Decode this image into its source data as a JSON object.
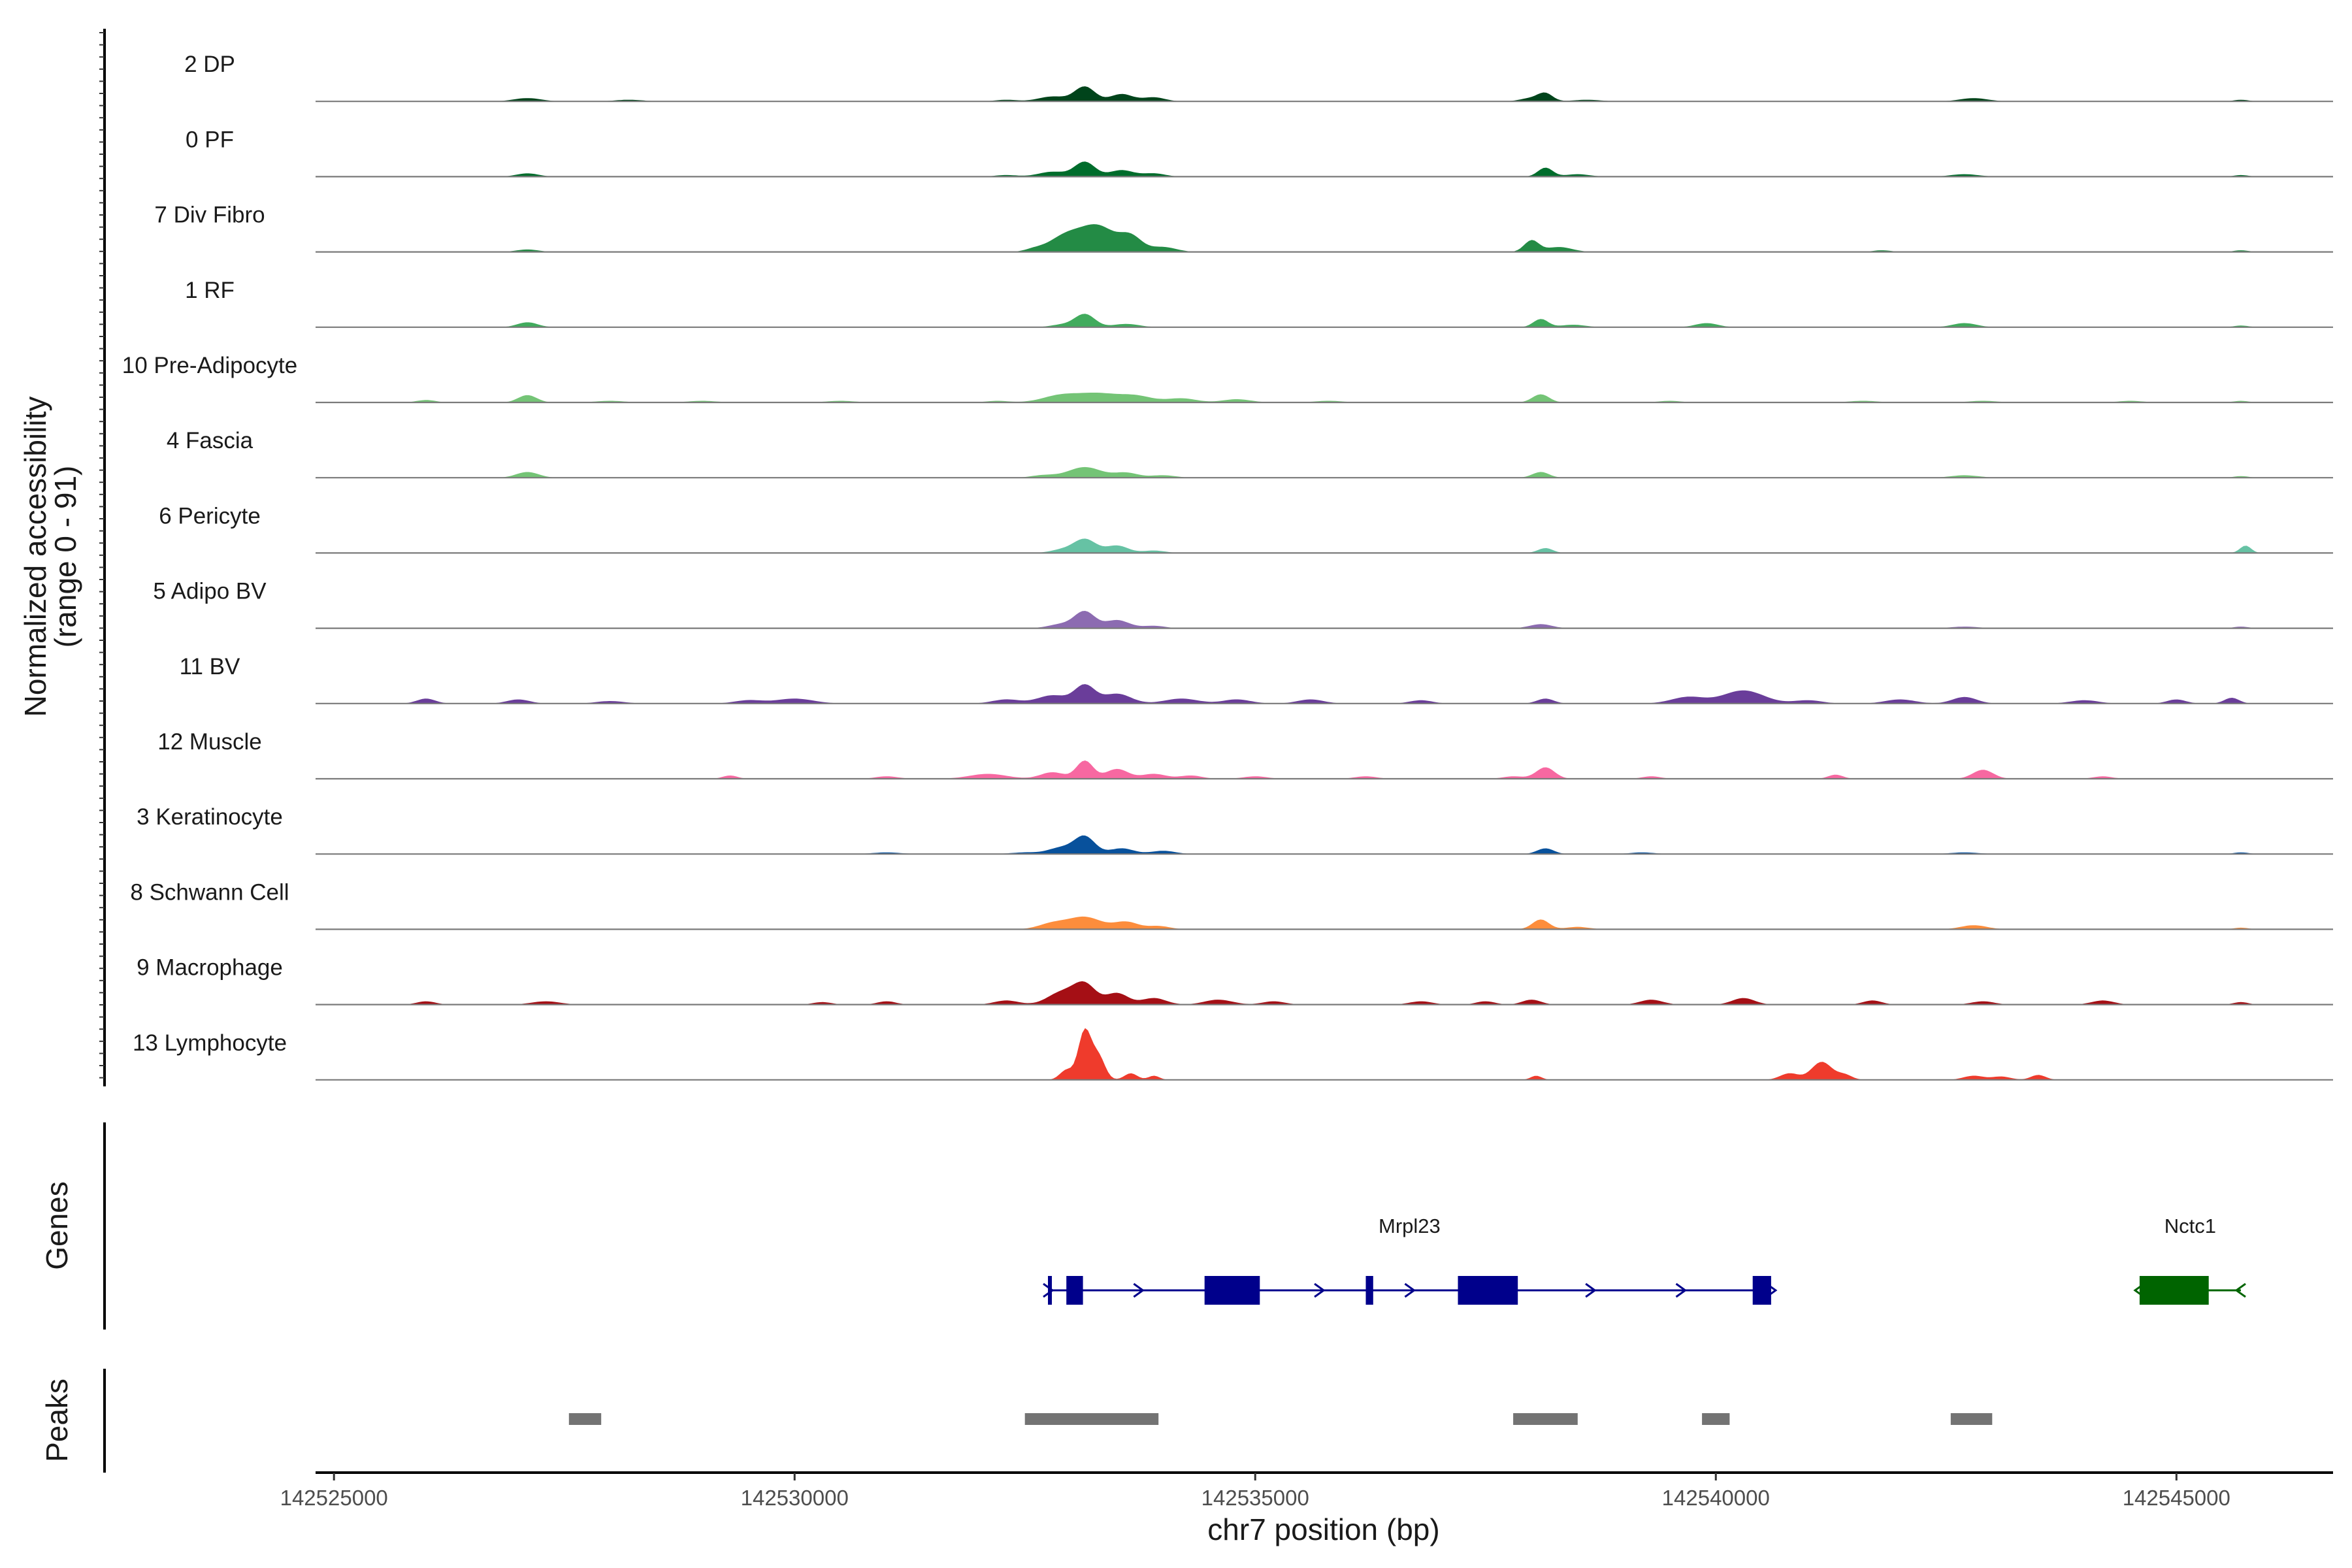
{
  "chart_data": {
    "type": "area",
    "title": "",
    "ylabel": "Normalized accessibility",
    "ylabel_range": "(range 0 - 91)",
    "ylim": [
      0,
      91
    ],
    "xlabel": "chr7 position (bp)",
    "xlim": [
      142524800,
      142546700
    ],
    "x_ticks": [
      142525000,
      142530000,
      142535000,
      142540000,
      142545000
    ],
    "x_tick_labels": [
      "142525000",
      "142530000",
      "142535000",
      "142540000",
      "142545000"
    ],
    "tracks": [
      {
        "name": "2 DP",
        "color": "#00441b",
        "peaks": [
          [
            142527100,
            4,
            150
          ],
          [
            142528200,
            2,
            150
          ],
          [
            142532300,
            2,
            120
          ],
          [
            142532800,
            6,
            150
          ],
          [
            142533150,
            18,
            110
          ],
          [
            142533550,
            9,
            120
          ],
          [
            142533900,
            5,
            120
          ],
          [
            142538000,
            4,
            120
          ],
          [
            142538150,
            9,
            80
          ],
          [
            142538600,
            2,
            150
          ],
          [
            142542800,
            4,
            150
          ],
          [
            142545700,
            2,
            80
          ]
        ]
      },
      {
        "name": "0 PF",
        "color": "#006d2c",
        "peaks": [
          [
            142527100,
            4,
            120
          ],
          [
            142532300,
            2,
            120
          ],
          [
            142532800,
            6,
            150
          ],
          [
            142533150,
            18,
            110
          ],
          [
            142533550,
            8,
            130
          ],
          [
            142533900,
            4,
            120
          ],
          [
            142538150,
            11,
            80
          ],
          [
            142538500,
            3,
            130
          ],
          [
            142542700,
            3,
            150
          ],
          [
            142545700,
            2,
            80
          ]
        ]
      },
      {
        "name": "7 Div Fibro",
        "color": "#238b45",
        "peaks": [
          [
            142527100,
            3,
            120
          ],
          [
            142532600,
            3,
            100
          ],
          [
            142532950,
            20,
            180
          ],
          [
            142533300,
            30,
            180
          ],
          [
            142533650,
            18,
            120
          ],
          [
            142534000,
            6,
            140
          ],
          [
            142538000,
            14,
            80
          ],
          [
            142538300,
            6,
            140
          ],
          [
            142541800,
            2,
            100
          ],
          [
            142545700,
            2,
            80
          ]
        ]
      },
      {
        "name": "1 RF",
        "color": "#41ab5d",
        "peaks": [
          [
            142527100,
            6,
            110
          ],
          [
            142532900,
            3,
            120
          ],
          [
            142533150,
            16,
            110
          ],
          [
            142533600,
            4,
            140
          ],
          [
            142538100,
            10,
            80
          ],
          [
            142538450,
            3,
            130
          ],
          [
            142539900,
            5,
            120
          ],
          [
            142542700,
            5,
            130
          ],
          [
            142545700,
            2,
            80
          ]
        ]
      },
      {
        "name": "10 Pre-Adipocyte",
        "color": "#74c476",
        "peaks": [
          [
            142526000,
            3,
            100
          ],
          [
            142527100,
            9,
            100
          ],
          [
            142528000,
            2,
            150
          ],
          [
            142529000,
            2,
            150
          ],
          [
            142530500,
            2,
            150
          ],
          [
            142532200,
            2,
            120
          ],
          [
            142532900,
            9,
            200
          ],
          [
            142533300,
            10,
            200
          ],
          [
            142533700,
            8,
            180
          ],
          [
            142534200,
            5,
            160
          ],
          [
            142534800,
            4,
            150
          ],
          [
            142535800,
            2,
            150
          ],
          [
            142538100,
            10,
            90
          ],
          [
            142539500,
            2,
            120
          ],
          [
            142541600,
            2,
            150
          ],
          [
            142542900,
            2,
            150
          ],
          [
            142544500,
            2,
            130
          ],
          [
            142545700,
            2,
            80
          ]
        ]
      },
      {
        "name": "4 Fascia",
        "color": "#74c476",
        "peaks": [
          [
            142527100,
            7,
            120
          ],
          [
            142532700,
            3,
            130
          ],
          [
            142533150,
            13,
            180
          ],
          [
            142533600,
            6,
            130
          ],
          [
            142534000,
            3,
            130
          ],
          [
            142538100,
            7,
            90
          ],
          [
            142542700,
            3,
            150
          ],
          [
            142545700,
            2,
            80
          ]
        ]
      },
      {
        "name": "6 Pericyte",
        "color": "#66c2a4",
        "peaks": [
          [
            142532900,
            4,
            120
          ],
          [
            142533150,
            17,
            120
          ],
          [
            142533500,
            9,
            120
          ],
          [
            142533900,
            3,
            120
          ],
          [
            142538150,
            6,
            80
          ],
          [
            142545750,
            9,
            60
          ]
        ]
      },
      {
        "name": "5 Adipo BV",
        "color": "#8c6bb1",
        "peaks": [
          [
            142532900,
            5,
            140
          ],
          [
            142533150,
            20,
            110
          ],
          [
            142533500,
            10,
            130
          ],
          [
            142533900,
            3,
            120
          ],
          [
            142538100,
            5,
            120
          ],
          [
            142542700,
            2,
            150
          ],
          [
            142545700,
            2,
            80
          ]
        ]
      },
      {
        "name": "11 BV",
        "color": "#6a3d9a",
        "peaks": [
          [
            142526000,
            6,
            100
          ],
          [
            142527000,
            5,
            120
          ],
          [
            142528000,
            3,
            150
          ],
          [
            142529500,
            4,
            150
          ],
          [
            142530000,
            6,
            200
          ],
          [
            142532300,
            5,
            150
          ],
          [
            142532800,
            10,
            160
          ],
          [
            142533150,
            22,
            110
          ],
          [
            142533500,
            12,
            150
          ],
          [
            142534200,
            6,
            180
          ],
          [
            142534800,
            5,
            150
          ],
          [
            142535600,
            5,
            140
          ],
          [
            142536800,
            4,
            120
          ],
          [
            142538150,
            6,
            90
          ],
          [
            142539700,
            8,
            180
          ],
          [
            142540300,
            16,
            220
          ],
          [
            142541000,
            4,
            150
          ],
          [
            142542000,
            5,
            160
          ],
          [
            142542700,
            8,
            130
          ],
          [
            142544000,
            4,
            150
          ],
          [
            142545000,
            5,
            100
          ],
          [
            142545600,
            7,
            80
          ]
        ]
      },
      {
        "name": "12 Muscle",
        "color": "#f768a1",
        "peaks": [
          [
            142529300,
            4,
            80
          ],
          [
            142531000,
            3,
            120
          ],
          [
            142532100,
            6,
            200
          ],
          [
            142532800,
            8,
            130
          ],
          [
            142533150,
            22,
            90
          ],
          [
            142533500,
            12,
            120
          ],
          [
            142533900,
            6,
            130
          ],
          [
            142534300,
            4,
            120
          ],
          [
            142535000,
            3,
            130
          ],
          [
            142536200,
            3,
            120
          ],
          [
            142537800,
            3,
            110
          ],
          [
            142538150,
            14,
            100
          ],
          [
            142539300,
            3,
            100
          ],
          [
            142541300,
            5,
            80
          ],
          [
            142542900,
            11,
            110
          ],
          [
            142544200,
            3,
            100
          ]
        ]
      },
      {
        "name": "3 Keratinocyte",
        "color": "#08519c",
        "peaks": [
          [
            142531000,
            2,
            150
          ],
          [
            142532500,
            2,
            150
          ],
          [
            142532900,
            8,
            140
          ],
          [
            142533150,
            21,
            110
          ],
          [
            142533550,
            7,
            130
          ],
          [
            142534000,
            4,
            130
          ],
          [
            142538150,
            7,
            90
          ],
          [
            142539200,
            2,
            130
          ],
          [
            142542700,
            2,
            150
          ],
          [
            142545700,
            2,
            80
          ]
        ]
      },
      {
        "name": "8 Schwann Cell",
        "color": "#fd8d3c",
        "peaks": [
          [
            142532800,
            7,
            150
          ],
          [
            142533150,
            15,
            180
          ],
          [
            142533600,
            9,
            130
          ],
          [
            142533950,
            4,
            120
          ],
          [
            142538100,
            12,
            90
          ],
          [
            142538500,
            3,
            120
          ],
          [
            142542800,
            5,
            140
          ],
          [
            142545700,
            2,
            80
          ]
        ]
      },
      {
        "name": "9 Macrophage",
        "color": "#a50f15",
        "peaks": [
          [
            142526000,
            4,
            100
          ],
          [
            142527300,
            4,
            150
          ],
          [
            142530300,
            3,
            100
          ],
          [
            142531000,
            4,
            100
          ],
          [
            142532300,
            5,
            130
          ],
          [
            142532900,
            15,
            150
          ],
          [
            142533150,
            24,
            120
          ],
          [
            142533500,
            14,
            120
          ],
          [
            142533900,
            8,
            130
          ],
          [
            142534600,
            6,
            150
          ],
          [
            142535200,
            4,
            120
          ],
          [
            142536800,
            4,
            120
          ],
          [
            142537500,
            4,
            100
          ],
          [
            142538000,
            6,
            100
          ],
          [
            142539300,
            6,
            120
          ],
          [
            142540300,
            8,
            120
          ],
          [
            142541700,
            5,
            100
          ],
          [
            142542900,
            4,
            120
          ],
          [
            142544200,
            5,
            120
          ],
          [
            142545700,
            3,
            80
          ]
        ]
      },
      {
        "name": "13 Lymphocyte",
        "color": "#ef3b2c",
        "peaks": [
          [
            142532950,
            12,
            70
          ],
          [
            142533150,
            60,
            70
          ],
          [
            142533300,
            28,
            70
          ],
          [
            142533650,
            8,
            70
          ],
          [
            142533900,
            5,
            60
          ],
          [
            142538050,
            5,
            60
          ],
          [
            142540800,
            8,
            100
          ],
          [
            142541150,
            22,
            110
          ],
          [
            142541400,
            6,
            80
          ],
          [
            142542800,
            5,
            110
          ],
          [
            142543100,
            4,
            100
          ],
          [
            142543500,
            6,
            80
          ]
        ]
      }
    ],
    "genes_label": "Genes",
    "genes": [
      {
        "name": "Mrpl23",
        "strand": "+",
        "color": "#00008b",
        "start": 142532750,
        "end": 142540600,
        "exons": [
          [
            142532750,
            142532780
          ],
          [
            142532950,
            142533130
          ],
          [
            142534450,
            142535050
          ],
          [
            142536200,
            142536280
          ],
          [
            142537200,
            142537850
          ],
          [
            142540400,
            142540600
          ]
        ]
      },
      {
        "name": "Nctc1",
        "strand": "-",
        "color": "#006400",
        "start": 142544600,
        "end": 142545700,
        "exons": [
          [
            142544600,
            142545350
          ]
        ]
      }
    ],
    "peaks_label": "Peaks",
    "peak_regions": [
      [
        142527550,
        142527900
      ],
      [
        142532500,
        142533950
      ],
      [
        142537800,
        142538500
      ],
      [
        142539850,
        142540150
      ],
      [
        142542550,
        142543000
      ]
    ],
    "peak_color": "#737373"
  }
}
